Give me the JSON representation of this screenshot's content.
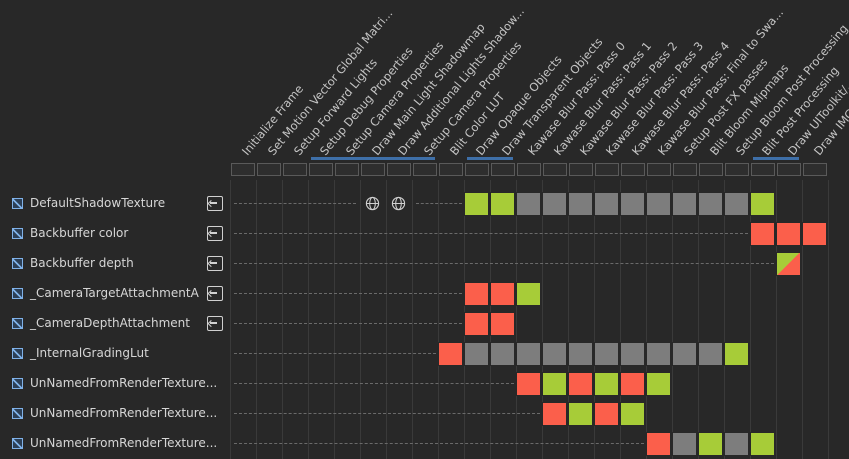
{
  "passes": [
    "Initialize Frame",
    "Set Motion Vector Global Matri...",
    "Setup Forward Lights",
    "Setup Debug Properties",
    "Setup Camera Properties",
    "Draw Main Light Shadowmap",
    "Draw Additional Lights Shadow...",
    "Setup Camera Properties",
    "Blit Color LUT",
    "Draw Opaque Objects",
    "Draw Transparent Objects",
    "Kawase Blur Pass: Pass 0",
    "Kawase Blur Pass: Pass 1",
    "Kawase Blur Pass: Pass 2",
    "Kawase Blur Pass: Pass 3",
    "Kawase Blur Pass: Pass 4",
    "Kawase Blur Pass: Final to Swa...",
    "Setup Post FX passes",
    "Blit Bloom Mipmaps",
    "Setup Bloom Post Processing",
    "Blit Post Processing",
    "Draw UIToolkit/...",
    "Draw IMGUI"
  ],
  "resources": [
    {
      "name": "DefaultShadowTexture",
      "imported": true,
      "globes": [
        5,
        6
      ],
      "cells": [
        [
          9,
          "read"
        ],
        [
          10,
          "read"
        ],
        [
          11,
          "alive"
        ],
        [
          12,
          "alive"
        ],
        [
          13,
          "alive"
        ],
        [
          14,
          "alive"
        ],
        [
          15,
          "alive"
        ],
        [
          16,
          "alive"
        ],
        [
          17,
          "alive"
        ],
        [
          18,
          "alive"
        ],
        [
          19,
          "alive"
        ],
        [
          20,
          "read"
        ]
      ]
    },
    {
      "name": "Backbuffer color",
      "imported": true,
      "globes": [],
      "cells": [
        [
          20,
          "write"
        ],
        [
          21,
          "write"
        ],
        [
          22,
          "write"
        ]
      ]
    },
    {
      "name": "Backbuffer depth",
      "imported": true,
      "globes": [],
      "cells": [
        [
          21,
          "rw"
        ]
      ]
    },
    {
      "name": "_CameraTargetAttachmentA",
      "imported": true,
      "globes": [],
      "cells": [
        [
          9,
          "write"
        ],
        [
          10,
          "write"
        ],
        [
          11,
          "read"
        ]
      ]
    },
    {
      "name": "_CameraDepthAttachment",
      "imported": true,
      "globes": [],
      "cells": [
        [
          9,
          "write"
        ],
        [
          10,
          "write"
        ]
      ]
    },
    {
      "name": "_InternalGradingLut",
      "imported": false,
      "globes": [],
      "cells": [
        [
          8,
          "write"
        ],
        [
          9,
          "alive"
        ],
        [
          10,
          "alive"
        ],
        [
          11,
          "alive"
        ],
        [
          12,
          "alive"
        ],
        [
          13,
          "alive"
        ],
        [
          14,
          "alive"
        ],
        [
          15,
          "alive"
        ],
        [
          16,
          "alive"
        ],
        [
          17,
          "alive"
        ],
        [
          18,
          "alive"
        ],
        [
          19,
          "read"
        ]
      ]
    },
    {
      "name": "UnNamedFromRenderTexture...",
      "imported": false,
      "globes": [],
      "cells": [
        [
          11,
          "write"
        ],
        [
          12,
          "read"
        ],
        [
          13,
          "write"
        ],
        [
          14,
          "read"
        ],
        [
          15,
          "write"
        ],
        [
          16,
          "read"
        ]
      ]
    },
    {
      "name": "UnNamedFromRenderTexture...",
      "imported": false,
      "globes": [],
      "cells": [
        [
          12,
          "write"
        ],
        [
          13,
          "read"
        ],
        [
          14,
          "write"
        ],
        [
          15,
          "read"
        ]
      ]
    },
    {
      "name": "UnNamedFromRenderTexture...",
      "imported": false,
      "globes": [],
      "cells": [
        [
          16,
          "write"
        ],
        [
          17,
          "alive"
        ],
        [
          18,
          "read"
        ],
        [
          19,
          "alive"
        ],
        [
          20,
          "read"
        ]
      ]
    }
  ],
  "pass_groups": [
    [
      3,
      7
    ],
    [
      9,
      10
    ],
    [
      20,
      21
    ]
  ],
  "colors": {
    "read": "#a7cc38",
    "write": "#fb5f4b",
    "alive": "#7d7d7d",
    "group": "#3e6fa8"
  }
}
